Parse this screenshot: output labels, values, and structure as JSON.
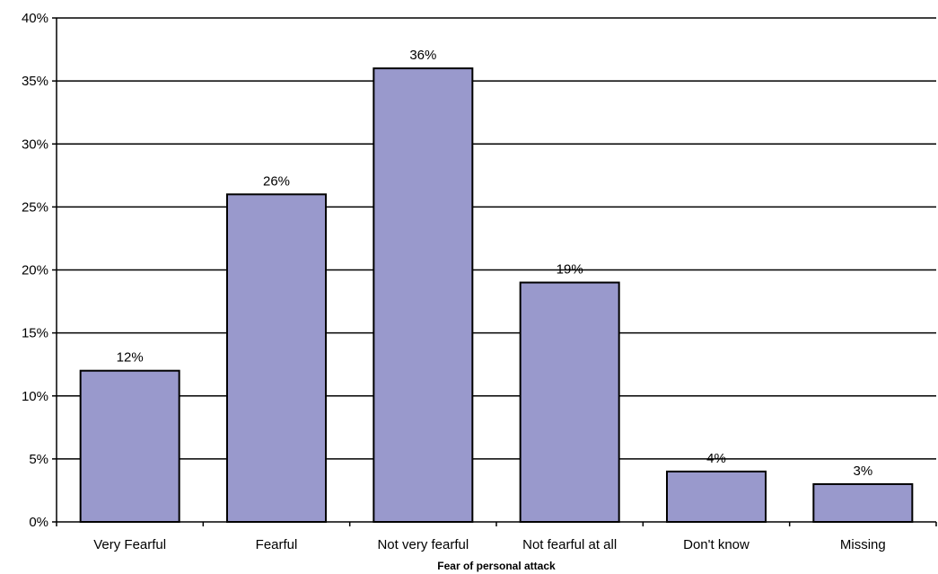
{
  "chart_data": {
    "type": "bar",
    "title": "",
    "xlabel": "Fear of personal attack",
    "ylabel": "",
    "categories": [
      "Very Fearful",
      "Fearful",
      "Not very fearful",
      "Not fearful at all",
      "Don't know",
      "Missing"
    ],
    "values": [
      12,
      26,
      36,
      19,
      4,
      3
    ],
    "data_labels": [
      "12%",
      "26%",
      "36%",
      "19%",
      "4%",
      "3%"
    ],
    "y_ticks": [
      0,
      5,
      10,
      15,
      20,
      25,
      30,
      35,
      40
    ],
    "y_tick_labels": [
      "0%",
      "5%",
      "10%",
      "15%",
      "20%",
      "25%",
      "30%",
      "35%",
      "40%"
    ],
    "ylim": [
      0,
      40
    ],
    "grid": true,
    "legend": "none",
    "bar_color": "#9999cc",
    "bar_edge_color": "#000000",
    "grid_color": "#000000"
  }
}
